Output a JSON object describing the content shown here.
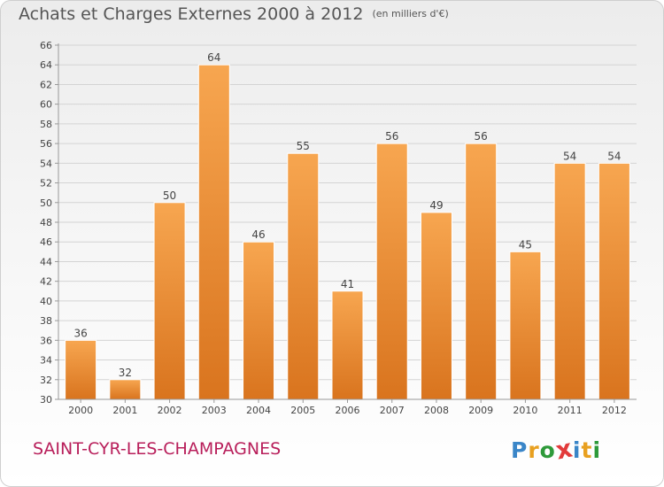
{
  "title": "Achats et Charges Externes 2000 à 2012",
  "subtitle": "(en milliers d'€)",
  "place": "SAINT-CYR-LES-CHAMPAGNES",
  "logo": {
    "letters": [
      "P",
      "r",
      "o",
      "x",
      "i",
      "t",
      "i"
    ],
    "colors": [
      "#3a86c8",
      "#e8a020",
      "#2e9a3a",
      "#e23b3b",
      "#3a86c8",
      "#e8a020",
      "#2e9a3a"
    ]
  },
  "chart_data": {
    "type": "bar",
    "categories": [
      "2000",
      "2001",
      "2002",
      "2003",
      "2004",
      "2005",
      "2006",
      "2007",
      "2008",
      "2009",
      "2010",
      "2011",
      "2012"
    ],
    "values": [
      36,
      32,
      50,
      64,
      46,
      55,
      41,
      56,
      49,
      56,
      45,
      54,
      54
    ],
    "data_labels": [
      "36",
      "32",
      "50",
      "64",
      "46",
      "55",
      "41",
      "56",
      "49",
      "56",
      "45",
      "54",
      "54"
    ],
    "yticks": [
      "30",
      "32",
      "34",
      "36",
      "38",
      "40",
      "42",
      "44",
      "46",
      "48",
      "50",
      "52",
      "54",
      "56",
      "58",
      "60",
      "62",
      "64",
      "66"
    ],
    "ylim": [
      30,
      66
    ],
    "grid": true,
    "bar_color": "#f08a2c"
  }
}
